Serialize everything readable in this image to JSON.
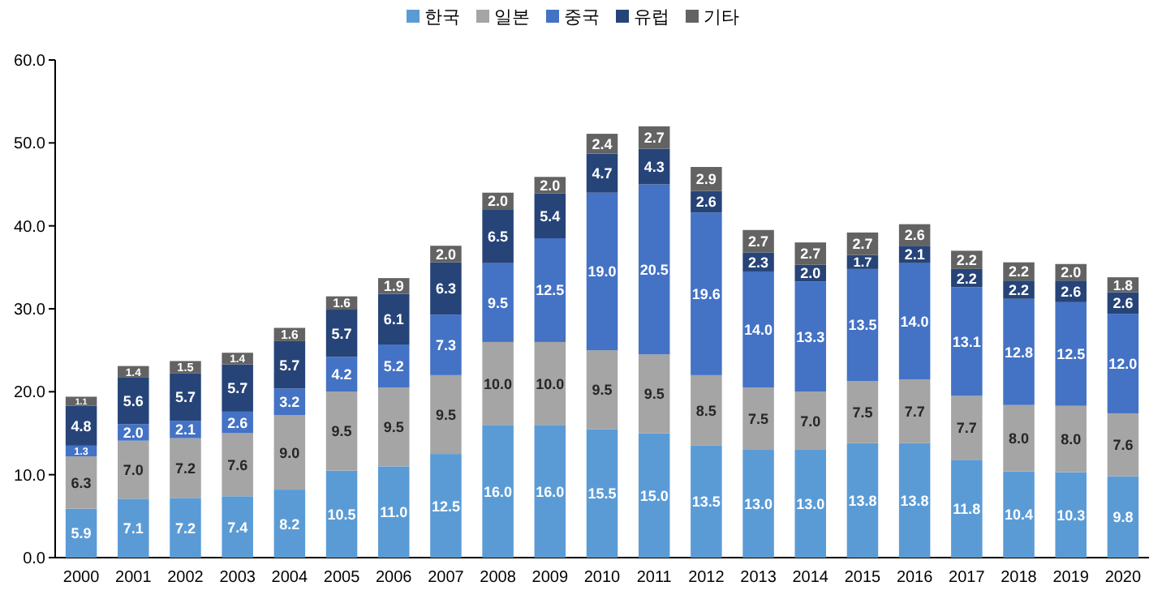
{
  "chart_data": {
    "type": "bar",
    "stacked": true,
    "legend": "top",
    "grid": false,
    "categories": [
      "2000",
      "2001",
      "2002",
      "2003",
      "2004",
      "2005",
      "2006",
      "2007",
      "2008",
      "2009",
      "2010",
      "2011",
      "2012",
      "2013",
      "2014",
      "2015",
      "2016",
      "2017",
      "2018",
      "2019",
      "2020"
    ],
    "ylim": [
      0,
      60
    ],
    "yticks": [
      {
        "value": 0,
        "label": "0.0"
      },
      {
        "value": 10,
        "label": "10.0"
      },
      {
        "value": 20,
        "label": "20.0"
      },
      {
        "value": 30,
        "label": "30.0"
      },
      {
        "value": 40,
        "label": "40.0"
      },
      {
        "value": 50,
        "label": "50.0"
      },
      {
        "value": 60,
        "label": "60.0"
      }
    ],
    "series": [
      {
        "name": "한국",
        "color": "#5b9bd5",
        "values": [
          5.9,
          7.1,
          7.2,
          7.4,
          8.2,
          10.5,
          11.0,
          12.5,
          16.0,
          16.0,
          15.5,
          15.0,
          13.5,
          13.0,
          13.0,
          13.8,
          13.8,
          11.8,
          10.4,
          10.3,
          9.8
        ],
        "value_labels": [
          "5.9",
          "7.1",
          "7.2",
          "7.4",
          "8.2",
          "10.5",
          "11.0",
          "12.5",
          "16.0",
          "16.0",
          "15.5",
          "15.0",
          "13.5",
          "13.0",
          "13.0",
          "13.8",
          "13.8",
          "11.8",
          "10.4",
          "10.3",
          "9.8"
        ]
      },
      {
        "name": "일본",
        "color": "#a5a5a5",
        "values": [
          6.3,
          7.0,
          7.2,
          7.6,
          9.0,
          9.5,
          9.5,
          9.5,
          10.0,
          10.0,
          9.5,
          9.5,
          8.5,
          7.5,
          7.0,
          7.5,
          7.7,
          7.7,
          8.0,
          8.0,
          7.6
        ],
        "value_labels": [
          "6.3",
          "7.0",
          "7.2",
          "7.6",
          "9.0",
          "9.5",
          "9.5",
          "9.5",
          "10.0",
          "10.0",
          "9.5",
          "9.5",
          "8.5",
          "7.5",
          "7.0",
          "7.5",
          "7.7",
          "7.7",
          "8.0",
          "8.0",
          "7.6"
        ]
      },
      {
        "name": "중국",
        "color": "#4472c4",
        "values": [
          1.3,
          2.0,
          2.1,
          2.6,
          3.2,
          4.2,
          5.2,
          7.3,
          9.5,
          12.5,
          19.0,
          20.5,
          19.6,
          14.0,
          13.3,
          13.5,
          14.0,
          13.1,
          12.8,
          12.5,
          12.0
        ],
        "value_labels": [
          "1.3",
          "2.0",
          "2.1",
          "2.6",
          "3.2",
          "4.2",
          "5.2",
          "7.3",
          "9.5",
          "12.5",
          "19.0",
          "20.5",
          "19.6",
          "14.0",
          "13.3",
          "13.5",
          "14.0",
          "13.1",
          "12.8",
          "12.5",
          "12.0"
        ]
      },
      {
        "name": "유럽",
        "color": "#264478",
        "values": [
          4.8,
          5.6,
          5.7,
          5.7,
          5.7,
          5.7,
          6.1,
          6.3,
          6.5,
          5.4,
          4.7,
          4.3,
          2.6,
          2.3,
          2.0,
          1.7,
          2.1,
          2.2,
          2.2,
          2.6,
          2.6
        ],
        "value_labels": [
          "4.8",
          "5.6",
          "5.7",
          "5.7",
          "5.7",
          "5.7",
          "6.1",
          "6.3",
          "6.5",
          "5.4",
          "4.7",
          "4.3",
          "2.6",
          "2.3",
          "2.0",
          "1.7",
          "2.1",
          "2.2",
          "2.2",
          "2.6",
          "2.6"
        ]
      },
      {
        "name": "기타",
        "color": "#636363",
        "values": [
          1.1,
          1.4,
          1.5,
          1.4,
          1.6,
          1.6,
          1.9,
          2.0,
          2.0,
          2.0,
          2.4,
          2.7,
          2.9,
          2.7,
          2.7,
          2.7,
          2.6,
          2.2,
          2.2,
          2.0,
          1.8
        ],
        "value_labels": [
          "1.1",
          "1.4",
          "1.5",
          "1.4",
          "1.6",
          "1.6",
          "1.9",
          "2.0",
          "2.0",
          "2.0",
          "2.4",
          "2.7",
          "2.9",
          "2.7",
          "2.7",
          "2.7",
          "2.6",
          "2.2",
          "2.2",
          "2.0",
          "1.8"
        ]
      }
    ]
  }
}
